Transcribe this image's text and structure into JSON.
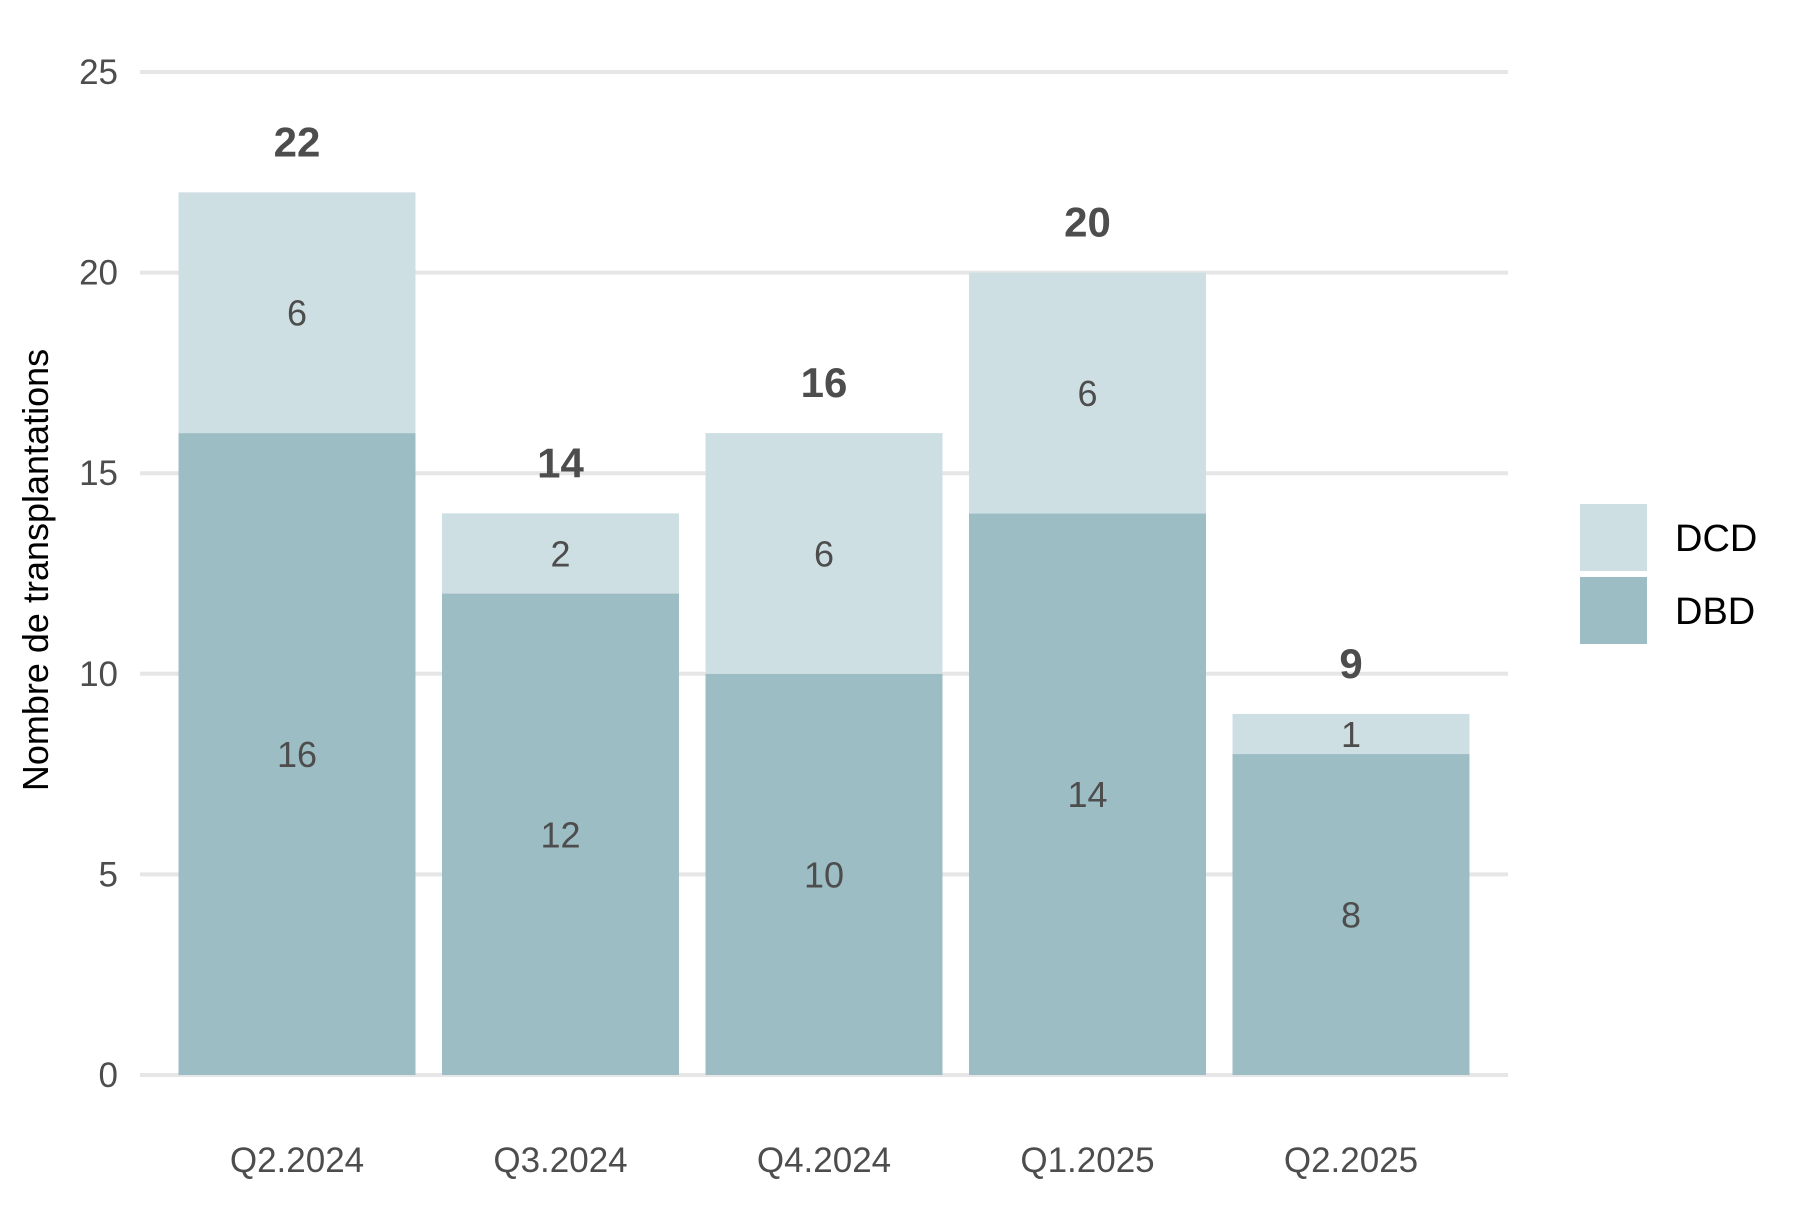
{
  "chart_data": {
    "type": "bar",
    "stacked": true,
    "categories": [
      "Q2.2024",
      "Q3.2024",
      "Q4.2024",
      "Q1.2025",
      "Q2.2025"
    ],
    "series": [
      {
        "name": "DBD",
        "values": [
          16,
          12,
          10,
          14,
          8
        ],
        "color": "#9dbdc5"
      },
      {
        "name": "DCD",
        "values": [
          6,
          2,
          6,
          6,
          1
        ],
        "color": "#cedfe3"
      }
    ],
    "totals": [
      22,
      14,
      16,
      20,
      9
    ],
    "title": "",
    "xlabel": "",
    "ylabel": "Nombre de transplantations",
    "ylim": [
      0,
      25
    ],
    "yticks": [
      0,
      5,
      10,
      15,
      20,
      25
    ],
    "grid": true,
    "legend": {
      "position": "right",
      "order": [
        "DCD",
        "DBD"
      ]
    }
  }
}
